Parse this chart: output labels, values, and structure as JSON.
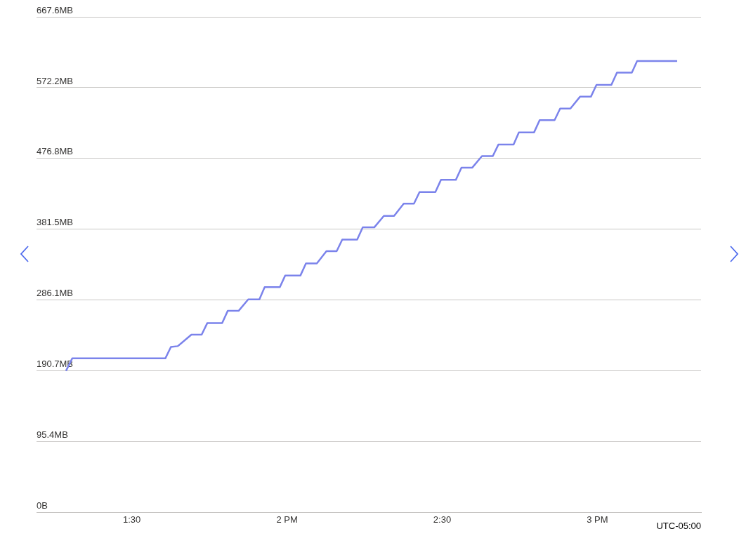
{
  "chart_data": {
    "type": "line",
    "x": [
      1.288,
      1.308,
      1.608,
      1.626,
      1.648,
      1.692,
      1.725,
      1.743,
      1.791,
      1.809,
      1.844,
      1.875,
      1.911,
      1.928,
      1.977,
      1.994,
      2.043,
      2.061,
      2.096,
      2.127,
      2.16,
      2.178,
      2.226,
      2.244,
      2.281,
      2.312,
      2.345,
      2.376,
      2.409,
      2.427,
      2.478,
      2.496,
      2.544,
      2.562,
      2.597,
      2.628,
      2.663,
      2.681,
      2.73,
      2.747,
      2.796,
      2.814,
      2.862,
      2.88,
      2.913,
      2.944,
      2.979,
      2.997,
      3.045,
      3.063,
      3.111,
      3.128,
      3.257
    ],
    "series": [
      {
        "color": "#7b83eb",
        "values": [
          190.7,
          207.5,
          207.5,
          223,
          224,
          239.5,
          239.5,
          255,
          255,
          271.5,
          271.5,
          287,
          287,
          303.5,
          303.5,
          319,
          319,
          335.5,
          335.5,
          352,
          352,
          367.5,
          367.5,
          384,
          384,
          399.5,
          399.5,
          416,
          416,
          431.5,
          431.5,
          448,
          448,
          464.5,
          464.5,
          480,
          480,
          495.5,
          495.5,
          512,
          512,
          528.5,
          528.5,
          544,
          544,
          560,
          560,
          576,
          576,
          592.5,
          592.5,
          608,
          608
        ]
      }
    ],
    "xlim": [
      1.193,
      3.334
    ],
    "xticks": [
      {
        "value": 1.5,
        "label": "1:30"
      },
      {
        "value": 2,
        "label": "2 PM"
      },
      {
        "value": 2.5,
        "label": "2:30"
      },
      {
        "value": 3,
        "label": "3 PM"
      }
    ],
    "ylim": [
      0,
      667.6
    ],
    "yticks": [
      {
        "value": 0,
        "label": "0B"
      },
      {
        "value": 95.4,
        "label": "95.4MB"
      },
      {
        "value": 190.7,
        "label": "190.7MB"
      },
      {
        "value": 286.1,
        "label": "286.1MB"
      },
      {
        "value": 381.5,
        "label": "381.5MB"
      },
      {
        "value": 476.8,
        "label": "476.8MB"
      },
      {
        "value": 572.2,
        "label": "572.2MB"
      },
      {
        "value": 667.6,
        "label": "667.6MB"
      }
    ],
    "grid": "y",
    "marker": "none",
    "line_style": "solid",
    "annotations": [
      "UTC-05:00"
    ]
  }
}
